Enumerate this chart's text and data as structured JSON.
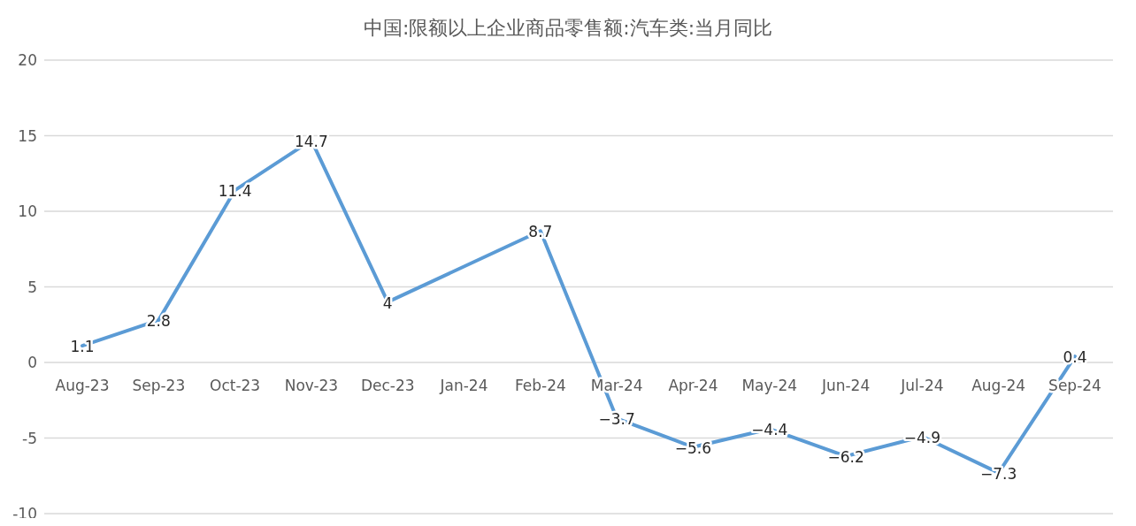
{
  "chart_data": {
    "type": "line",
    "title": "中国:限额以上企业商品零售额:汽车类:当月同比",
    "categories": [
      "Aug-23",
      "Sep-23",
      "Oct-23",
      "Nov-23",
      "Dec-23",
      "Jan-24",
      "Feb-24",
      "Mar-24",
      "Apr-24",
      "May-24",
      "Jun-24",
      "Jul-24",
      "Aug-24",
      "Sep-24"
    ],
    "series": [
      {
        "color": "#5b9bd5",
        "values": [
          1.1,
          2.8,
          11.4,
          14.7,
          4,
          null,
          8.7,
          -3.7,
          -5.6,
          -4.4,
          -6.2,
          -4.9,
          -7.3,
          0.4
        ]
      }
    ],
    "ylim": [
      -10,
      20
    ],
    "yticks": [
      -10,
      -5,
      0,
      5,
      10,
      15,
      20
    ],
    "grid": "y",
    "data_labels": true,
    "marker": "none",
    "line_style": "solid"
  }
}
